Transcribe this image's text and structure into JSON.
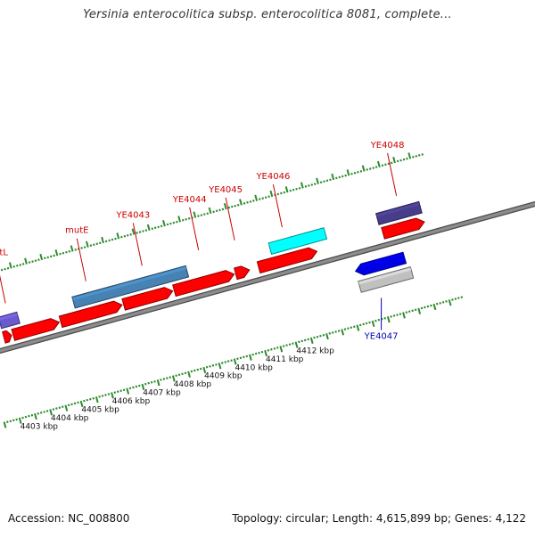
{
  "title": "Yersinia enterocolitica subsp. enterocolitica 8081, complete...",
  "footer": {
    "accession": "Accession: NC_008800",
    "summary": "Topology: circular; Length: 4,615,899 bp; Genes: 4,122"
  },
  "colors": {
    "background": "#ffffff",
    "backbone": "#8c8c8c",
    "backbone_edge": "#4a4a4a",
    "tick": "#2e8b2e",
    "forward_label": "#cc0000",
    "reverse_label": "#0000b4",
    "kbp_label": "#111111"
  },
  "scale": {
    "unit": "kbp",
    "labels": [
      "4403 kbp",
      "4404 kbp",
      "4405 kbp",
      "4406 kbp",
      "4407 kbp",
      "4408 kbp",
      "4409 kbp",
      "4410 kbp",
      "4411 kbp",
      "4412 kbp"
    ]
  },
  "features": [
    {
      "name": "cds-fwd-1",
      "lane": "fwd-cds",
      "from": 4402.7,
      "to": 4402.95,
      "color": "#ff0000",
      "label": ""
    },
    {
      "name": "cds-fwd-2",
      "lane": "fwd-cds",
      "from": 4403.0,
      "to": 4404.5,
      "color": "#ff0000",
      "label": ""
    },
    {
      "name": "cds-fwd-3",
      "lane": "fwd-cds",
      "from": 4404.55,
      "to": 4406.55,
      "color": "#ff0000",
      "label": "mutE"
    },
    {
      "name": "cds-fwd-4",
      "lane": "fwd-cds",
      "from": 4406.6,
      "to": 4408.2,
      "color": "#ff0000",
      "label": "YE4043"
    },
    {
      "name": "cds-fwd-5",
      "lane": "fwd-cds",
      "from": 4408.25,
      "to": 4410.2,
      "color": "#ff0000",
      "label": "YE4044"
    },
    {
      "name": "cds-fwd-6",
      "lane": "fwd-cds",
      "from": 4410.25,
      "to": 4410.7,
      "color": "#ff0000",
      "label": "YE4045"
    },
    {
      "name": "cds-fwd-7",
      "lane": "fwd-cds",
      "from": 4411.0,
      "to": 4412.9,
      "color": "#ff0000",
      "label": "YE4046"
    },
    {
      "name": "cds-fwd-8",
      "lane": "fwd-cds",
      "from": 4415.05,
      "to": 4416.4,
      "color": "#ff0000",
      "label": ""
    },
    {
      "name": "gene-fwd-1",
      "lane": "fwd-gene",
      "from": 4402.7,
      "to": 4403.3,
      "color": "#6a5acd",
      "label": "mutL"
    },
    {
      "name": "gene-fwd-2",
      "lane": "fwd-gene",
      "from": 4405.1,
      "to": 4408.8,
      "color": "#4682b4",
      "label": ""
    },
    {
      "name": "gene-fwd-3",
      "lane": "fwd-gene",
      "from": 4411.5,
      "to": 4413.3,
      "color": "#00ffff",
      "label": ""
    },
    {
      "name": "gene-fwd-4",
      "lane": "fwd-gene",
      "from": 4415.0,
      "to": 4416.4,
      "color": "#483d8b",
      "label": "YE4048"
    },
    {
      "name": "cds-rev-1",
      "lane": "rev-cds",
      "from": 4413.9,
      "to": 4415.5,
      "color": "#0000e6",
      "label": "YE4047"
    },
    {
      "name": "gene-rev-1",
      "lane": "rev-gene",
      "from": 4413.9,
      "to": 4415.6,
      "color": "#c0c0c0",
      "label": ""
    }
  ]
}
